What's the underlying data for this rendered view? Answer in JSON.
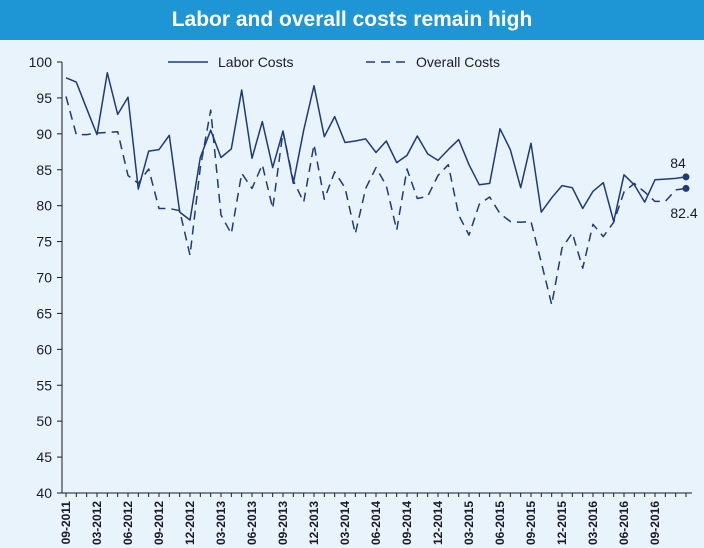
{
  "chart_data": {
    "type": "line",
    "title": "Labor and overall costs remain high",
    "ylim": [
      40,
      100
    ],
    "yticks": [
      "40",
      "45",
      "50",
      "55",
      "60",
      "65",
      "70",
      "75",
      "80",
      "85",
      "90",
      "95",
      "100"
    ],
    "xtick_labels": [
      "09-2011",
      "03-2012",
      "06-2012",
      "09-2012",
      "12-2012",
      "03-2013",
      "06-2013",
      "09-2013",
      "12-2013",
      "03-2014",
      "06-2014",
      "09-2014",
      "12-2014",
      "03-2015",
      "06-2015",
      "09-2015",
      "12-2015",
      "03-2016",
      "06-2016",
      "09-2016"
    ],
    "legend_position": "top-center",
    "grid": false,
    "series": [
      {
        "name": "Labor Costs",
        "style": "solid",
        "color": "#1f3a7a",
        "values": [
          97.8,
          97.2,
          93.5,
          89.9,
          98.5,
          92.7,
          95.1,
          82.3,
          87.6,
          87.8,
          89.8,
          79.1,
          78,
          86.7,
          90.5,
          86.7,
          87.9,
          96.1,
          86.6,
          91.7,
          85.3,
          90.4,
          83.1,
          90.5,
          96.7,
          89.6,
          92.4,
          88.8,
          89,
          89.3,
          87.4,
          89,
          86,
          87,
          89.7,
          87.2,
          86.3,
          87.8,
          89.2,
          85.7,
          82.9,
          83.1,
          90.7,
          87.8,
          82.5,
          88.7,
          79.1,
          81.1,
          82.8,
          82.5,
          79.6,
          82,
          83.2,
          77.8,
          84.3,
          82.9,
          80.5,
          83.6,
          83.7,
          83.8,
          84
        ]
      },
      {
        "name": "Overall Costs",
        "style": "dashed",
        "color": "#1f3a7a",
        "values": [
          95.2,
          89.9,
          89.9,
          90.1,
          90.2,
          90.3,
          84.2,
          83.1,
          85.1,
          79.6,
          79.6,
          79.3,
          73.1,
          85.3,
          93.3,
          78.7,
          76.1,
          84.5,
          82.4,
          85.7,
          79.6,
          90.3,
          83.5,
          80.5,
          88.5,
          80.9,
          84.7,
          82.5,
          76.1,
          82.4,
          85.3,
          82.8,
          76.6,
          85.1,
          81,
          81.3,
          84.2,
          85.7,
          78.7,
          75.9,
          80.2,
          81.2,
          78.9,
          77.8,
          77.7,
          77.8,
          72.1,
          66.2,
          74.1,
          76.2,
          71.3,
          77.4,
          75.7,
          77.7,
          81.9,
          83.1,
          81.9,
          80.6,
          80.6,
          82.2,
          82.4
        ]
      }
    ],
    "annotations": [
      "84",
      "82.4"
    ]
  }
}
